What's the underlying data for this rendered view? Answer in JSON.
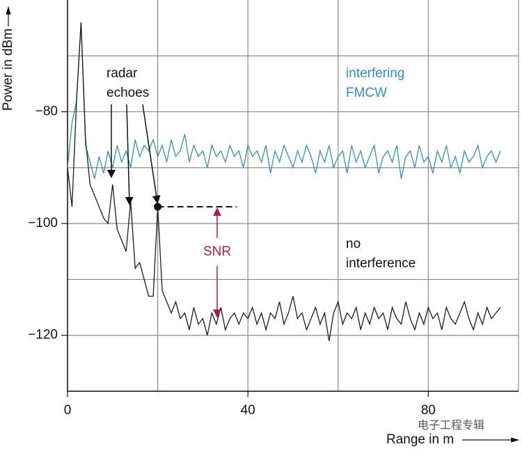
{
  "chart_data": {
    "type": "line",
    "y_label": "Power in dBm",
    "x_label": "Range in m",
    "annotations": {
      "echoes": "radar echoes",
      "snr": "SNR"
    },
    "watermark": "电子工程专辑",
    "xlim": [
      0,
      100
    ],
    "ylim": [
      -130,
      -60
    ],
    "xticks": [
      0,
      40,
      80
    ],
    "yticks": [
      {
        "value": -80,
        "label": "−80"
      },
      {
        "value": -100,
        "label": "−100"
      },
      {
        "value": -120,
        "label": "−120"
      }
    ],
    "xgrid": [
      0,
      20,
      40,
      60,
      80,
      100
    ],
    "ygrid": [
      -130,
      -120,
      -110,
      -100,
      -90,
      -80,
      -70
    ],
    "snr_point": {
      "x": 20,
      "y": -97,
      "floor": -117
    },
    "x": [
      0,
      1,
      2,
      3,
      4,
      5,
      6,
      7,
      8,
      9,
      10,
      11,
      12,
      13,
      14,
      15,
      16,
      17,
      18,
      19,
      20,
      21,
      22,
      23,
      24,
      25,
      26,
      27,
      28,
      29,
      30,
      31,
      32,
      33,
      34,
      35,
      36,
      37,
      38,
      39,
      40,
      41,
      42,
      43,
      44,
      45,
      46,
      47,
      48,
      49,
      50,
      51,
      52,
      53,
      54,
      55,
      56,
      57,
      58,
      59,
      60,
      61,
      62,
      63,
      64,
      65,
      66,
      67,
      68,
      69,
      70,
      71,
      72,
      73,
      74,
      75,
      76,
      77,
      78,
      79,
      80,
      81,
      82,
      83,
      84,
      85,
      86,
      87,
      88,
      89,
      90,
      91,
      92,
      93,
      94,
      95,
      96
    ],
    "series": [
      {
        "name": "interfering FMCW",
        "color": "#2e8fc0",
        "values": [
          -90,
          -82,
          -78,
          -64,
          -86,
          -89,
          -92,
          -88,
          -91,
          -87,
          -90,
          -86,
          -89,
          -87,
          -90,
          -85,
          -88,
          -86,
          -87,
          -85,
          -88,
          -86,
          -89,
          -85,
          -88,
          -87,
          -84,
          -89,
          -86,
          -88,
          -87,
          -90,
          -86,
          -88,
          -87,
          -89,
          -86,
          -88,
          -87,
          -90,
          -86,
          -88,
          -87,
          -89,
          -86,
          -91,
          -87,
          -89,
          -86,
          -88,
          -90,
          -87,
          -89,
          -86,
          -88,
          -91,
          -87,
          -89,
          -86,
          -90,
          -88,
          -87,
          -91,
          -86,
          -89,
          -87,
          -90,
          -88,
          -86,
          -91,
          -88,
          -87,
          -89,
          -86,
          -92,
          -88,
          -87,
          -90,
          -86,
          -89,
          -88,
          -91,
          -87,
          -89,
          -86,
          -90,
          -88,
          -91,
          -87,
          -89,
          -88,
          -86,
          -90,
          -88,
          -87,
          -89,
          -87
        ]
      },
      {
        "name": "no interference",
        "color": "#1a1a1a",
        "values": [
          -90,
          -97,
          -78,
          -64,
          -85,
          -93,
          -95,
          -97,
          -99,
          -100,
          -93,
          -101,
          -103,
          -105,
          -96,
          -108,
          -107,
          -110,
          -113,
          -113,
          -97,
          -112,
          -114,
          -116,
          -114,
          -117,
          -116,
          -119,
          -115,
          -118,
          -117,
          -120,
          -116,
          -118,
          -115,
          -119,
          -117,
          -116,
          -118,
          -116,
          -117,
          -115,
          -118,
          -116,
          -119,
          -116,
          -117,
          -114,
          -118,
          -116,
          -113,
          -117,
          -116,
          -119,
          -117,
          -115,
          -118,
          -116,
          -121,
          -116,
          -114,
          -118,
          -116,
          -117,
          -115,
          -119,
          -116,
          -118,
          -115,
          -117,
          -116,
          -119,
          -115,
          -117,
          -118,
          -114,
          -117,
          -119,
          -116,
          -118,
          -115,
          -117,
          -116,
          -119,
          -115,
          -117,
          -118,
          -116,
          -114,
          -117,
          -119,
          -116,
          -118,
          -115,
          -117,
          -116,
          -115
        ]
      }
    ]
  }
}
